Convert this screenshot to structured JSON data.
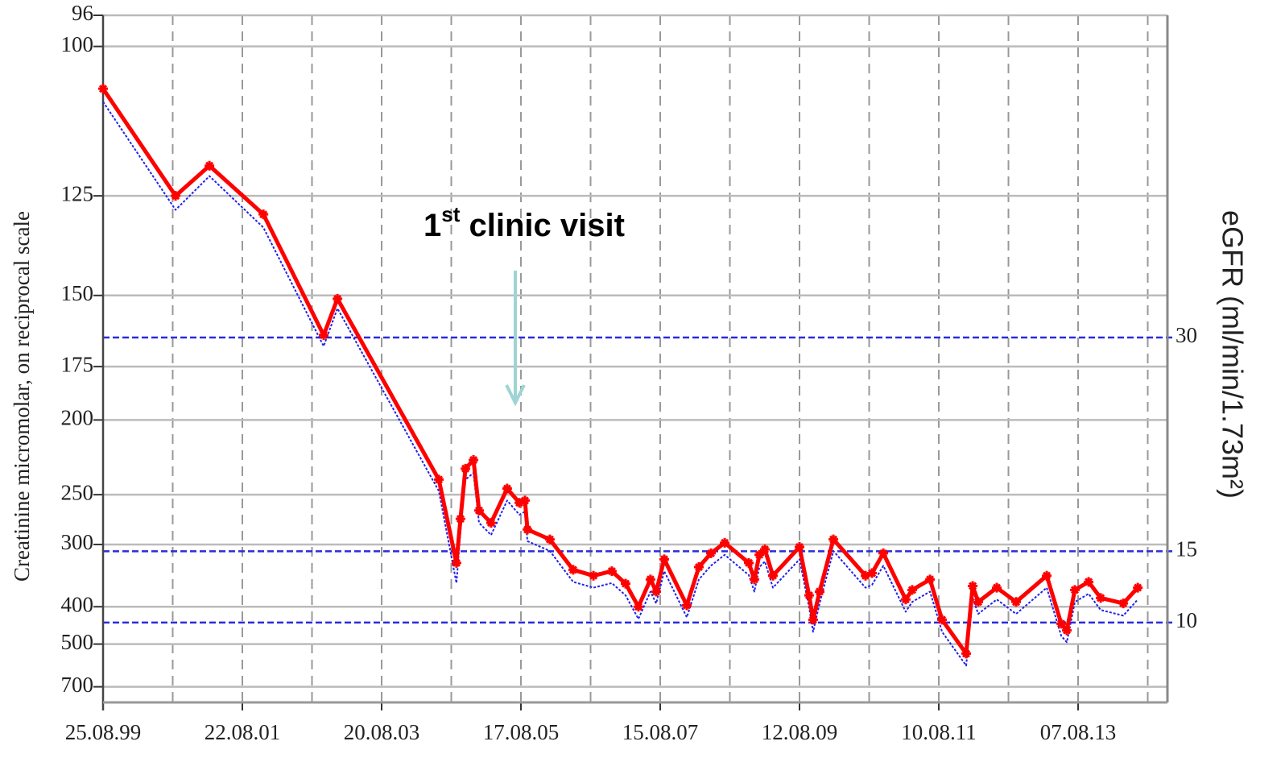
{
  "chart_data": {
    "type": "line",
    "ylabel": "Creatinine micromolar, on reciprocal scale",
    "y2label": "eGFR (ml/min/1.73m²)",
    "annotation_parts": [
      "1",
      "st",
      " clinic visit"
    ],
    "yscale": "reciprocal",
    "ylim": [
      96,
      820
    ],
    "yticks": [
      96,
      100,
      125,
      150,
      175,
      200,
      250,
      300,
      400,
      500,
      700
    ],
    "y2lim": [
      4.4,
      52.6
    ],
    "y2ticks": [
      30,
      15,
      10
    ],
    "y2_line_color": "#2b2bdd",
    "grid": true,
    "xlim": [
      "1999-08-25",
      "2014-11-17"
    ],
    "xticks": [
      {
        "value": "1999-08-25",
        "label": "25.08.99"
      },
      {
        "value": "2001-08-22",
        "label": "22.08.01"
      },
      {
        "value": "2003-08-20",
        "label": "20.08.03"
      },
      {
        "value": "2005-08-17",
        "label": "17.08.05"
      },
      {
        "value": "2007-08-15",
        "label": "15.08.07"
      },
      {
        "value": "2009-08-12",
        "label": "12.08.09"
      },
      {
        "value": "2011-08-10",
        "label": "10.08.11"
      },
      {
        "value": "2013-08-07",
        "label": "07.08.13"
      }
    ],
    "xminorticks": [
      "2000-08-23",
      "2002-08-21",
      "2004-08-18",
      "2006-08-16",
      "2008-08-13",
      "2010-08-11",
      "2012-08-08",
      "2014-08-06"
    ],
    "x": [
      "1999-08-25",
      "2000-09-07",
      "2001-03-03",
      "2001-12-10",
      "2002-10-21",
      "2003-01-01",
      "2004-06-14",
      "2004-09-14",
      "2004-10-05",
      "2004-10-31",
      "2004-12-12",
      "2005-01-10",
      "2005-03-14",
      "2005-06-06",
      "2005-08-09",
      "2005-09-07",
      "2005-09-20",
      "2006-01-15",
      "2006-05-17",
      "2006-08-31",
      "2006-12-05",
      "2007-02-15",
      "2007-04-23",
      "2007-06-25",
      "2007-07-25",
      "2007-09-05",
      "2008-01-01",
      "2008-03-04",
      "2008-05-06",
      "2008-07-17",
      "2008-11-20",
      "2008-12-19",
      "2009-01-14",
      "2009-02-12",
      "2009-03-26",
      "2009-08-12",
      "2009-10-01",
      "2009-10-22",
      "2009-11-25",
      "2010-02-05",
      "2010-07-23",
      "2010-08-26",
      "2010-10-24",
      "2011-02-18",
      "2011-03-24",
      "2011-06-25",
      "2011-08-27",
      "2011-12-31",
      "2012-02-03",
      "2012-03-03",
      "2012-06-08",
      "2012-09-17",
      "2013-02-24",
      "2013-05-11",
      "2013-06-09",
      "2013-07-21",
      "2013-10-01",
      "2013-12-03",
      "2014-03-31",
      "2014-06-15"
    ],
    "series": [
      {
        "color": "#2222ee",
        "style": "dotted",
        "values": [
          108,
          128,
          121,
          132,
          167,
          154,
          247,
          355,
          285,
          238,
          233,
          276,
          289,
          255,
          268,
          265,
          296,
          308,
          353,
          363,
          355,
          377,
          428,
          370,
          393,
          336,
          424,
          349,
          328,
          313,
          342,
          370,
          330,
          322,
          363,
          319,
          401,
          462,
          393,
          308,
          363,
          358,
          328,
          411,
          390,
          370,
          462,
          584,
          382,
          416,
          385,
          416,
          363,
          474,
          494,
          390,
          374,
          407,
          420,
          385
        ]
      },
      {
        "color": "#ff0000",
        "style": "solid",
        "markers": true,
        "values": [
          106,
          125,
          119,
          129,
          163,
          151,
          238,
          324,
          272,
          230,
          224,
          264,
          276,
          245,
          257,
          255,
          283,
          294,
          334,
          343,
          336,
          356,
          400,
          349,
          370,
          319,
          397,
          330,
          311,
          298,
          324,
          349,
          313,
          306,
          343,
          303,
          377,
          430,
          370,
          294,
          343,
          339,
          311,
          385,
          367,
          349,
          430,
          534,
          360,
          390,
          363,
          390,
          343,
          440,
          458,
          367,
          353,
          382,
          393,
          363
        ]
      }
    ]
  }
}
